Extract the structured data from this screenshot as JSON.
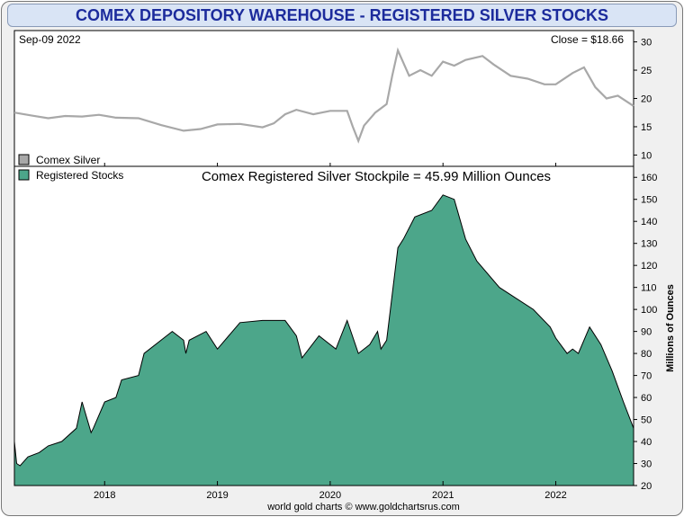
{
  "title": "COMEX DEPOSITORY WAREHOUSE - REGISTERED SILVER STOCKS",
  "date_label": "Sep-09  2022",
  "close_label": "Close = $18.66",
  "footer": "world gold charts © www.goldchartsrus.com",
  "colors": {
    "silver_line": "#a8a8a8",
    "stocks_fill": "#4ca68a",
    "title_text": "#1c2b9c"
  },
  "chart_data": [
    {
      "type": "line",
      "name": "comex-silver-price",
      "legend": "Comex Silver",
      "ylim": [
        8,
        32
      ],
      "yticks": [
        10,
        15,
        20,
        25,
        30
      ],
      "x": [
        2017.2,
        2017.35,
        2017.5,
        2017.65,
        2017.8,
        2017.95,
        2018.1,
        2018.3,
        2018.5,
        2018.7,
        2018.85,
        2019.0,
        2019.2,
        2019.4,
        2019.5,
        2019.6,
        2019.7,
        2019.85,
        2020.0,
        2020.15,
        2020.2,
        2020.25,
        2020.3,
        2020.4,
        2020.5,
        2020.55,
        2020.6,
        2020.7,
        2020.8,
        2020.9,
        2021.0,
        2021.1,
        2021.2,
        2021.35,
        2021.45,
        2021.6,
        2021.75,
        2021.9,
        2022.0,
        2022.15,
        2022.25,
        2022.35,
        2022.45,
        2022.55,
        2022.69
      ],
      "values": [
        17.5,
        17.0,
        16.5,
        16.9,
        16.8,
        17.1,
        16.6,
        16.5,
        15.3,
        14.3,
        14.6,
        15.4,
        15.5,
        14.9,
        15.6,
        17.2,
        18.0,
        17.2,
        17.8,
        17.8,
        15.0,
        12.5,
        15.2,
        17.5,
        19.0,
        24.0,
        28.5,
        24.0,
        25.0,
        24.0,
        26.5,
        25.8,
        26.8,
        27.5,
        26.0,
        24.0,
        23.5,
        22.5,
        22.5,
        24.5,
        25.5,
        22.0,
        20.0,
        20.5,
        18.66
      ]
    },
    {
      "type": "area",
      "name": "registered-stocks",
      "title": "Comex Registered Silver Stockpile = 45.99 Million Ounces",
      "legend": "Registered Stocks",
      "ylabel": "Millions of Ounces",
      "ylim": [
        20,
        165
      ],
      "yticks": [
        20,
        30,
        40,
        50,
        60,
        70,
        80,
        90,
        100,
        110,
        120,
        130,
        140,
        150,
        160
      ],
      "xticks": [
        "2018",
        "2019",
        "2020",
        "2021",
        "2022"
      ],
      "xtick_values": [
        2018,
        2019,
        2020,
        2021,
        2022
      ],
      "x": [
        2017.2,
        2017.22,
        2017.25,
        2017.32,
        2017.42,
        2017.5,
        2017.62,
        2017.75,
        2017.8,
        2017.88,
        2017.9,
        2018.0,
        2018.1,
        2018.15,
        2018.3,
        2018.35,
        2018.5,
        2018.6,
        2018.7,
        2018.72,
        2018.75,
        2018.9,
        2019.0,
        2019.1,
        2019.2,
        2019.4,
        2019.6,
        2019.7,
        2019.75,
        2019.9,
        2020.05,
        2020.15,
        2020.25,
        2020.35,
        2020.42,
        2020.45,
        2020.5,
        2020.6,
        2020.65,
        2020.75,
        2020.9,
        2021.0,
        2021.1,
        2021.2,
        2021.3,
        2021.5,
        2021.65,
        2021.8,
        2021.95,
        2022.0,
        2022.1,
        2022.15,
        2022.2,
        2022.3,
        2022.4,
        2022.5,
        2022.6,
        2022.69
      ],
      "values": [
        40,
        30,
        29,
        33,
        35,
        38,
        40,
        46,
        58,
        44,
        46,
        58,
        60,
        68,
        70,
        80,
        86,
        90,
        86,
        80,
        86,
        90,
        82,
        88,
        94,
        95,
        95,
        88,
        78,
        88,
        82,
        95,
        80,
        84,
        90,
        82,
        86,
        128,
        132,
        142,
        145,
        152,
        150,
        132,
        122,
        110,
        105,
        100,
        92,
        87,
        80,
        82,
        80,
        92,
        84,
        72,
        58,
        46
      ]
    }
  ]
}
